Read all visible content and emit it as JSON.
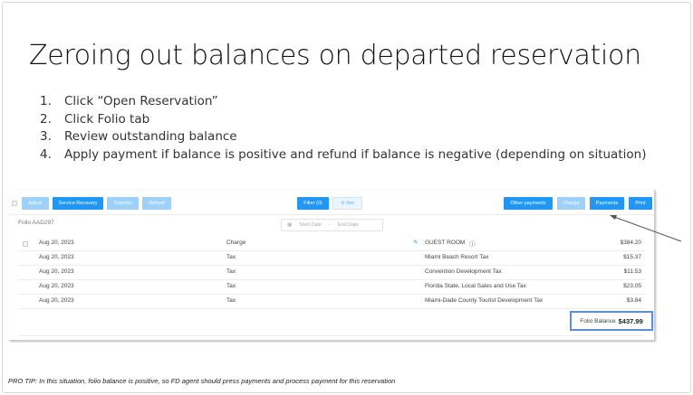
{
  "title": "Zeroing out balances on departed reservation",
  "steps": [
    "Click “Open Reservation”",
    "Click Folio tab",
    "Review outstanding balance",
    "Apply payment if balance is positive and refund if balance is negative (depending on situation)"
  ],
  "toolbar": {
    "adjust": "Adjust",
    "service_recovery": "Service Recovery",
    "transfer": "Transfer",
    "refund": "Refund",
    "filter": "Filter (0)",
    "net": "Net",
    "other_payments": "Other payments",
    "charge": "Charge",
    "payments": "Payments",
    "print": "Print"
  },
  "folio": {
    "id": "Folio AAD297",
    "start_placeholder": "Start Date",
    "end_placeholder": "End Date",
    "separator": "-",
    "rows": [
      {
        "date": "Aug 20, 2023",
        "type": "Charge",
        "desc": "GUEST ROOM",
        "amount": "$384.20"
      },
      {
        "date": "Aug 20, 2023",
        "type": "Tax",
        "desc": "Miami Beach Resort Tax",
        "amount": "$15.37"
      },
      {
        "date": "Aug 20, 2023",
        "type": "Tax",
        "desc": "Convention Development Tax",
        "amount": "$11.53"
      },
      {
        "date": "Aug 20, 2023",
        "type": "Tax",
        "desc": "Florida State, Local Sales and Use Tax",
        "amount": "$23.05"
      },
      {
        "date": "Aug 20, 2023",
        "type": "Tax",
        "desc": "Miami-Dade County Tourist Development Tax",
        "amount": "$3.84"
      }
    ],
    "balance_label": "Folio Balance",
    "balance_value": "$437.99"
  },
  "pro_tip": "PRO TIP: In this situation, folio balance is positive, so FD agent should press payments and process payment for this reservation",
  "colors": {
    "accent": "#2196f3",
    "highlight": "#5b8fd9"
  }
}
